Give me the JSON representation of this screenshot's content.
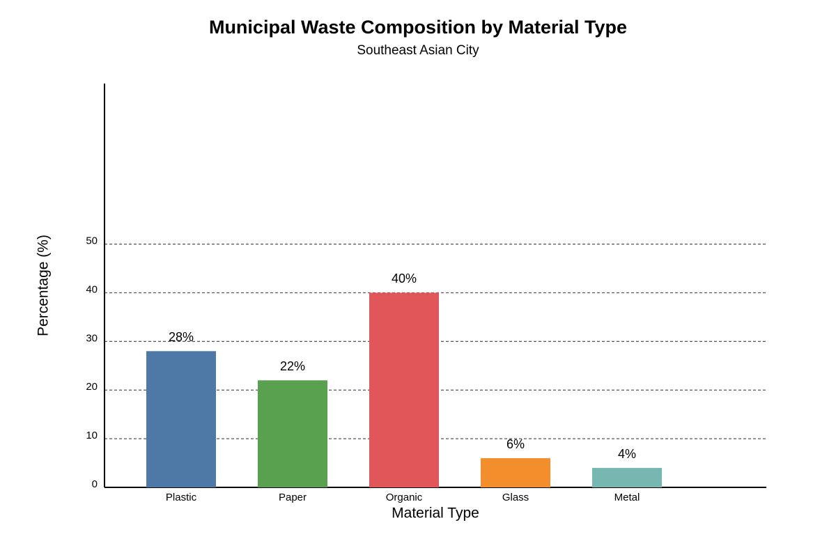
{
  "chart_data": {
    "type": "bar",
    "title": "Municipal Waste Composition by Material Type",
    "subtitle": "Southeast Asian City",
    "x_label": "Material Type",
    "y_label": "Percentage (%)",
    "categories": [
      "Plastic",
      "Paper",
      "Organic",
      "Glass",
      "Metal"
    ],
    "values": [
      28,
      22,
      40,
      6,
      4
    ],
    "value_labels": [
      "28%",
      "22%",
      "40%",
      "6%",
      "4%"
    ],
    "colors": [
      "#4e79a7",
      "#59a14f",
      "#e15759",
      "#f28e2b",
      "#76b7b2"
    ],
    "ylim": [
      0,
      83
    ],
    "yticks": [
      0,
      10,
      20,
      30,
      40,
      50
    ],
    "grid": true
  }
}
